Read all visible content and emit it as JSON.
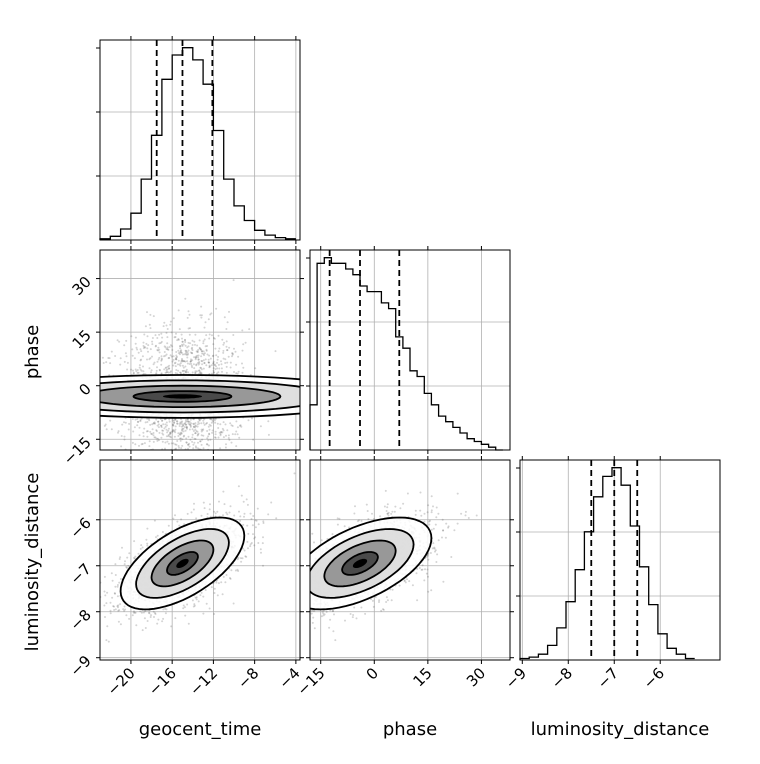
{
  "chart_data": {
    "type": "corner",
    "parameters": [
      "geocent_time",
      "phase",
      "luminosity_distance"
    ],
    "axes": {
      "geocent_time": {
        "label": "geocent_time",
        "range": [
          -23,
          -3.6
        ],
        "ticks": [
          -20,
          -16,
          -12,
          -8,
          -4
        ]
      },
      "phase": {
        "label": "phase",
        "range": [
          -18,
          38
        ],
        "ticks": [
          -15,
          0,
          15,
          30
        ]
      },
      "luminosity_distance": {
        "label": "luminosity_distance",
        "range": [
          -9.05,
          -4.7
        ],
        "ticks": [
          -9,
          -8,
          -7,
          -6
        ]
      }
    },
    "grid": true,
    "quantiles": {
      "geocent_time": [
        -17.5,
        -15.0,
        -12.1
      ],
      "phase": [
        -12.5,
        -4.0,
        7.0
      ],
      "luminosity_distance": [
        -7.5,
        -7.0,
        -6.5
      ]
    },
    "histograms": {
      "geocent_time": {
        "edges": [
          -23.0,
          -22.0,
          -21.0,
          -20.0,
          -19.0,
          -18.0,
          -17.0,
          -16.0,
          -15.0,
          -14.0,
          -13.0,
          -12.0,
          -11.0,
          -10.0,
          -9.0,
          -8.0,
          -7.0,
          -6.0,
          -5.0,
          -4.0
        ],
        "counts": [
          0.5,
          1.5,
          4.5,
          11.0,
          25.0,
          43.0,
          66.0,
          76.0,
          79.0,
          74.0,
          64.0,
          45.0,
          25.0,
          14.0,
          8.0,
          4.0,
          2.0,
          1.0,
          0.5
        ]
      },
      "phase": {
        "edges": [
          -18.0,
          -16.0,
          -14.0,
          -12.0,
          -10.0,
          -8.0,
          -6.0,
          -4.0,
          -2.0,
          0.0,
          2.0,
          4.0,
          6.0,
          8.0,
          10.0,
          12.0,
          14.0,
          16.0,
          18.0,
          20.0,
          22.0,
          24.0,
          26.0,
          28.0,
          30.0,
          32.0,
          34.0,
          36.0
        ],
        "counts": [
          8,
          33,
          34,
          33,
          33,
          32,
          31,
          29,
          28,
          28,
          26,
          25,
          20,
          18,
          14,
          13,
          10,
          8,
          6,
          5,
          4,
          3,
          2,
          1.5,
          1,
          0.5,
          0
        ]
      },
      "luminosity_distance": {
        "edges": [
          -9.05,
          -8.85,
          -8.65,
          -8.45,
          -8.25,
          -8.05,
          -7.85,
          -7.65,
          -7.45,
          -7.25,
          -7.05,
          -6.85,
          -6.65,
          -6.45,
          -6.25,
          -6.05,
          -5.85,
          -5.65,
          -5.45,
          -5.25
        ],
        "counts": [
          0.5,
          1.0,
          2.0,
          5.0,
          11.0,
          20.0,
          31.0,
          44.0,
          56.0,
          63.0,
          66.0,
          60.0,
          46.0,
          32.0,
          19.0,
          9.0,
          4.0,
          2.0,
          0.5
        ]
      }
    },
    "panels_2d": [
      {
        "x": "geocent_time",
        "y": "phase",
        "mean": [
          -15.0,
          -3.0
        ],
        "sd": [
          3.0,
          9.5
        ],
        "correlation": 0.0
      },
      {
        "x": "geocent_time",
        "y": "luminosity_distance",
        "mean": [
          -15.0,
          -6.95
        ],
        "sd": [
          3.0,
          0.5
        ],
        "correlation": 0.6
      },
      {
        "x": "phase",
        "y": "luminosity_distance",
        "mean": [
          -4.0,
          -6.95
        ],
        "sd": [
          10.0,
          0.5
        ],
        "correlation": 0.55
      }
    ],
    "contour_levels_sigma": [
      0.5,
      1.0,
      1.5,
      2.0
    ]
  },
  "colors": {
    "line": "#000000",
    "grid": "#b0b0b0",
    "quantile": "#000000",
    "points": "#555555"
  }
}
